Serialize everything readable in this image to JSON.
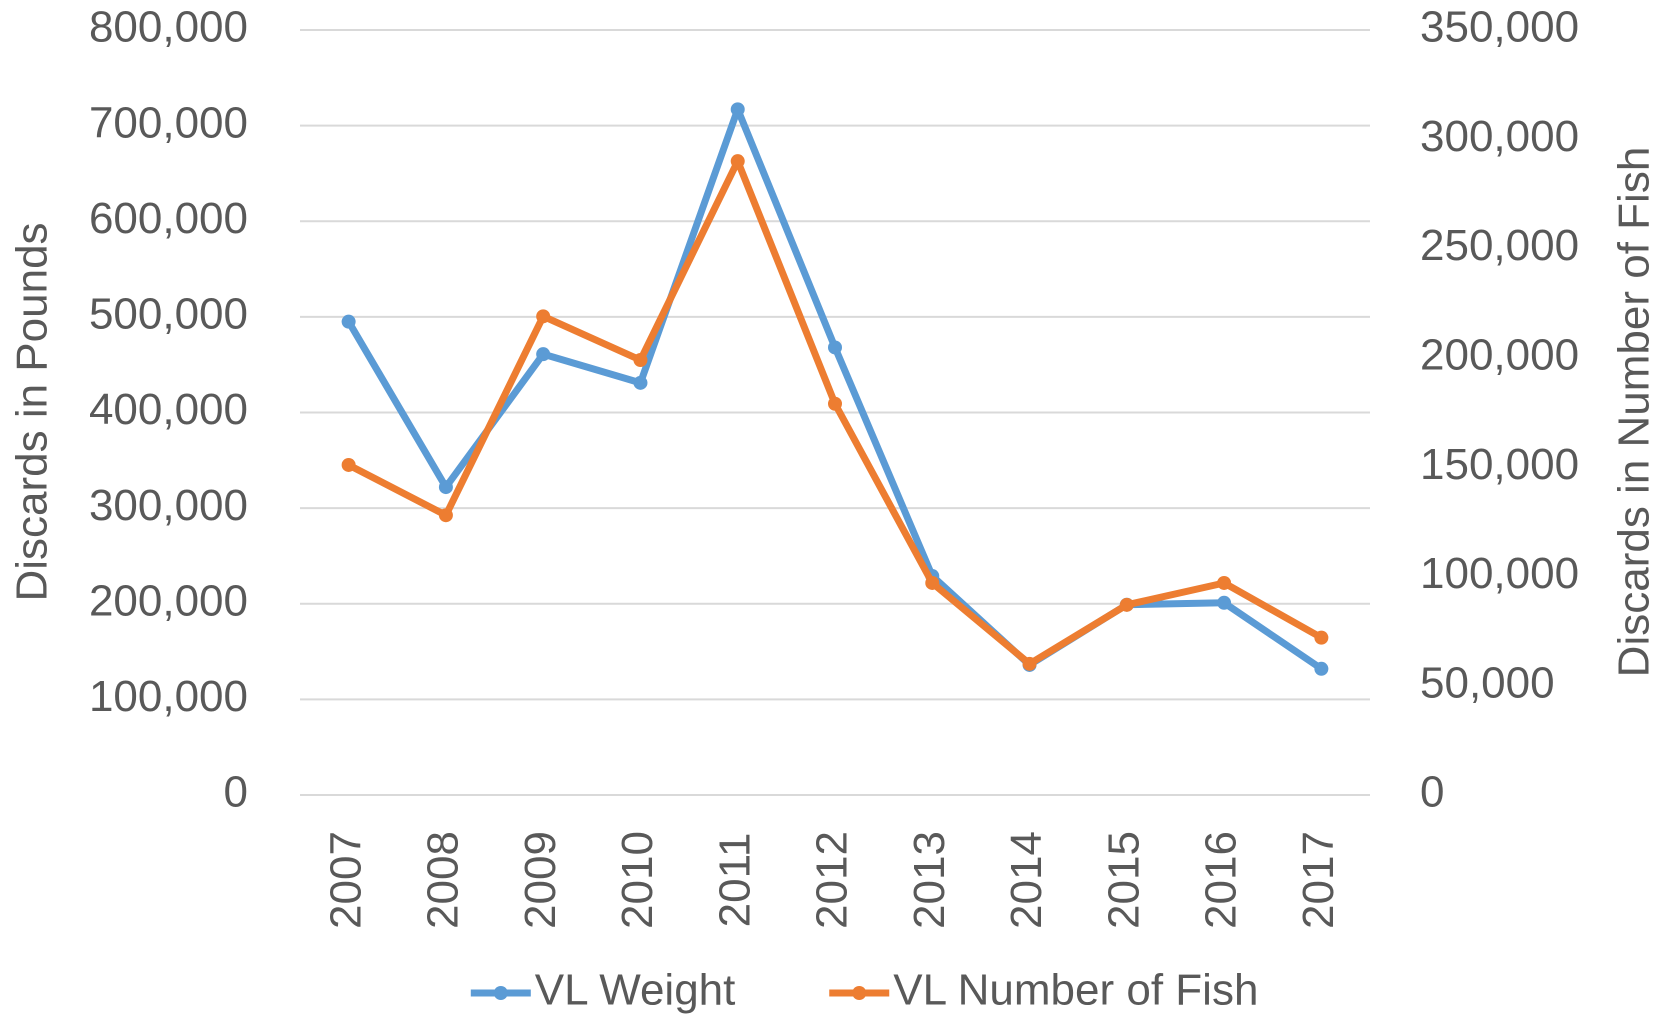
{
  "chart_data": {
    "type": "line",
    "y_label": "Discards in Pounds",
    "y2_label": "Discards in Number of Fish",
    "categories": [
      "2007",
      "2008",
      "2009",
      "2010",
      "2011",
      "2012",
      "2013",
      "2014",
      "2015",
      "2016",
      "2017"
    ],
    "series": [
      {
        "name": "VL Weight",
        "color": "#5b9bd5",
        "axis": "y",
        "values": [
          495000,
          322000,
          461000,
          431000,
          717000,
          468000,
          229000,
          136000,
          199000,
          201000,
          132000
        ]
      },
      {
        "name": "VL Number of Fish",
        "color": "#ed7d31",
        "axis": "y2",
        "values": [
          151000,
          128000,
          219000,
          199000,
          290000,
          179000,
          97000,
          60000,
          87000,
          97000,
          72000
        ]
      }
    ],
    "ylim": [
      0,
      800000
    ],
    "yticks": [
      0,
      {
        "value": 100000,
        "label": "100,000"
      },
      {
        "value": 200000,
        "label": "200,000"
      },
      {
        "value": 300000,
        "label": "300,000"
      },
      {
        "value": 400000,
        "label": "400,000"
      },
      {
        "value": 500000,
        "label": "500,000"
      },
      {
        "value": 600000,
        "label": "600,000"
      },
      {
        "value": 700000,
        "label": "700,000"
      },
      {
        "value": 800000,
        "label": "800,000"
      }
    ],
    "y2lim": [
      0,
      350000
    ],
    "y2ticks": [
      0,
      {
        "value": 50000,
        "label": "50,000"
      },
      {
        "value": 100000,
        "label": "100,000"
      },
      {
        "value": 150000,
        "label": "150,000"
      },
      {
        "value": 200000,
        "label": "200,000"
      },
      {
        "value": 250000,
        "label": "250,000"
      },
      {
        "value": 300000,
        "label": "300,000"
      },
      {
        "value": 350000,
        "label": "350,000"
      }
    ],
    "grid": true,
    "legend": "bottom"
  }
}
